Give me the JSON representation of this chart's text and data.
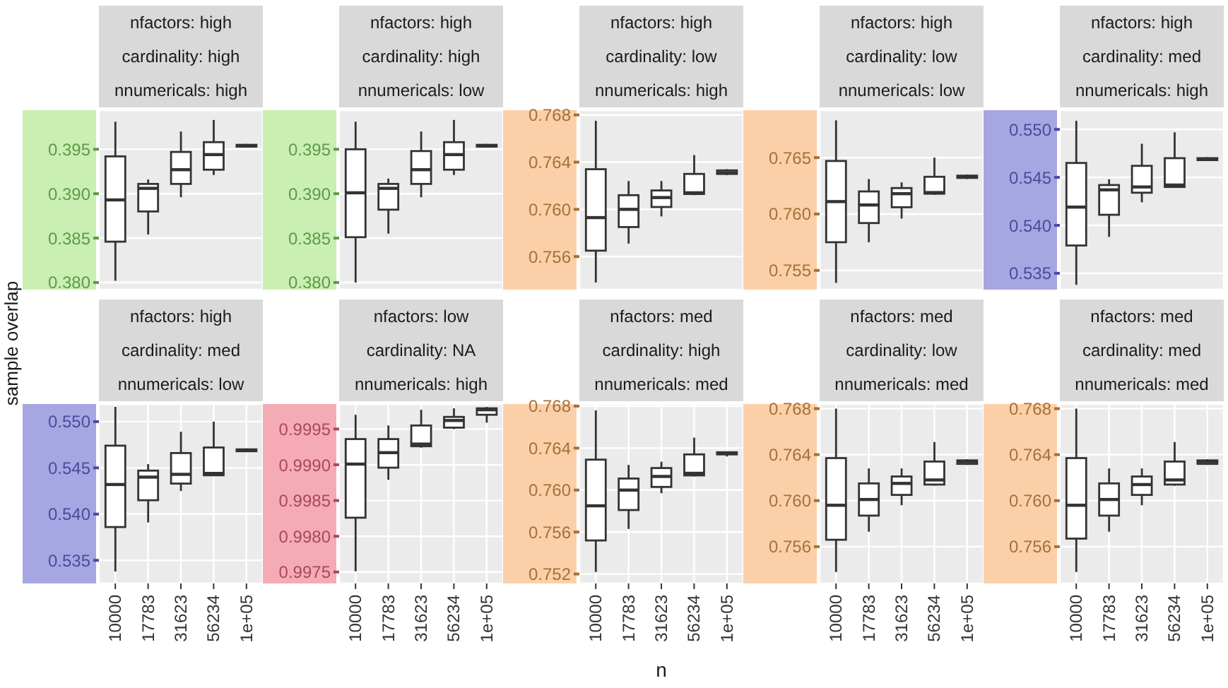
{
  "chart_data": [
    {
      "type": "box",
      "title": "nfactors: high\ncardinality: high\nnnumericals: high",
      "categories": [
        null,
        null,
        null,
        null,
        null
      ],
      "ylim": [
        0.3792,
        0.3994
      ],
      "yticks": [
        {
          "value": 0.38,
          "label": "0.380"
        },
        {
          "value": 0.385,
          "label": "0.385"
        },
        {
          "value": 0.39,
          "label": "0.390"
        },
        {
          "value": 0.395,
          "label": "0.395"
        }
      ],
      "grid": true,
      "tick_labels": "y",
      "boxes": [
        {
          "low": 0.3802,
          "q1": 0.3846,
          "median": 0.3893,
          "q3": 0.3942,
          "high": 0.3981
        },
        {
          "low": 0.3854,
          "q1": 0.388,
          "median": 0.3906,
          "q3": 0.3911,
          "high": 0.3916
        },
        {
          "low": 0.3896,
          "q1": 0.3911,
          "median": 0.3927,
          "q3": 0.3947,
          "high": 0.397
        },
        {
          "low": 0.3921,
          "q1": 0.3927,
          "median": 0.3944,
          "q3": 0.3958,
          "high": 0.3983
        },
        {
          "low": 0.3952,
          "q1": 0.3953,
          "median": 0.3954,
          "q3": 0.3955,
          "high": 0.3956
        }
      ]
    },
    {
      "type": "box",
      "title": "nfactors: high\ncardinality: high\nnnumericals: low",
      "categories": [
        null,
        null,
        null,
        null,
        null
      ],
      "ylim": [
        0.3792,
        0.3994
      ],
      "yticks": [
        {
          "value": 0.38,
          "label": "0.380"
        },
        {
          "value": 0.385,
          "label": "0.385"
        },
        {
          "value": 0.39,
          "label": "0.390"
        },
        {
          "value": 0.395,
          "label": "0.395"
        }
      ],
      "grid": true,
      "tick_labels": "y",
      "boxes": [
        {
          "low": 0.38,
          "q1": 0.3851,
          "median": 0.3901,
          "q3": 0.395,
          "high": 0.3981
        },
        {
          "low": 0.3855,
          "q1": 0.3882,
          "median": 0.3906,
          "q3": 0.3911,
          "high": 0.3917
        },
        {
          "low": 0.3896,
          "q1": 0.3911,
          "median": 0.3927,
          "q3": 0.3948,
          "high": 0.397
        },
        {
          "low": 0.3921,
          "q1": 0.3927,
          "median": 0.3944,
          "q3": 0.3958,
          "high": 0.3983
        },
        {
          "low": 0.3952,
          "q1": 0.3953,
          "median": 0.3954,
          "q3": 0.3955,
          "high": 0.3956
        }
      ]
    },
    {
      "type": "box",
      "title": "nfactors: high\ncardinality: low\nnnumericals: high",
      "categories": [
        null,
        null,
        null,
        null,
        null
      ],
      "ylim": [
        0.7532,
        0.7684
      ],
      "yticks": [
        {
          "value": 0.756,
          "label": "0.756"
        },
        {
          "value": 0.76,
          "label": "0.760"
        },
        {
          "value": 0.764,
          "label": "0.764"
        },
        {
          "value": 0.768,
          "label": "0.768"
        }
      ],
      "grid": true,
      "tick_labels": "y",
      "boxes": [
        {
          "low": 0.7538,
          "q1": 0.7565,
          "median": 0.7593,
          "q3": 0.7634,
          "high": 0.7675
        },
        {
          "low": 0.7571,
          "q1": 0.7585,
          "median": 0.76,
          "q3": 0.7612,
          "high": 0.7624
        },
        {
          "low": 0.7594,
          "q1": 0.7602,
          "median": 0.761,
          "q3": 0.7616,
          "high": 0.7624
        },
        {
          "low": 0.7612,
          "q1": 0.7613,
          "median": 0.7614,
          "q3": 0.763,
          "high": 0.7646
        },
        {
          "low": 0.7629,
          "q1": 0.763,
          "median": 0.7631,
          "q3": 0.7633,
          "high": 0.7634
        }
      ]
    },
    {
      "type": "box",
      "title": "nfactors: high\ncardinality: low\nnnumericals: low",
      "categories": [
        null,
        null,
        null,
        null,
        null
      ],
      "ylim": [
        0.7533,
        0.7692
      ],
      "yticks": [
        {
          "value": 0.755,
          "label": "0.755"
        },
        {
          "value": 0.76,
          "label": "0.760"
        },
        {
          "value": 0.765,
          "label": "0.765"
        }
      ],
      "grid": true,
      "tick_labels": "y",
      "boxes": [
        {
          "low": 0.7539,
          "q1": 0.7575,
          "median": 0.7611,
          "q3": 0.7647,
          "high": 0.7683
        },
        {
          "low": 0.7575,
          "q1": 0.7592,
          "median": 0.7608,
          "q3": 0.762,
          "high": 0.7631
        },
        {
          "low": 0.7596,
          "q1": 0.7606,
          "median": 0.7618,
          "q3": 0.7623,
          "high": 0.7628
        },
        {
          "low": 0.7617,
          "q1": 0.7618,
          "median": 0.7619,
          "q3": 0.7633,
          "high": 0.765
        },
        {
          "low": 0.7631,
          "q1": 0.7632,
          "median": 0.7633,
          "q3": 0.7634,
          "high": 0.7635
        }
      ]
    },
    {
      "type": "box",
      "title": "nfactors: high\ncardinality: med\nnnumericals: high",
      "categories": [
        null,
        null,
        null,
        null,
        null
      ],
      "ylim": [
        0.5333,
        0.552
      ],
      "yticks": [
        {
          "value": 0.535,
          "label": "0.535"
        },
        {
          "value": 0.54,
          "label": "0.540"
        },
        {
          "value": 0.545,
          "label": "0.545"
        },
        {
          "value": 0.55,
          "label": "0.550"
        }
      ],
      "grid": true,
      "tick_labels": "y",
      "boxes": [
        {
          "low": 0.5338,
          "q1": 0.5379,
          "median": 0.5419,
          "q3": 0.5465,
          "high": 0.5509
        },
        {
          "low": 0.5388,
          "q1": 0.5411,
          "median": 0.5437,
          "q3": 0.5442,
          "high": 0.5448
        },
        {
          "low": 0.5424,
          "q1": 0.5434,
          "median": 0.544,
          "q3": 0.5462,
          "high": 0.5485
        },
        {
          "low": 0.5439,
          "q1": 0.544,
          "median": 0.5442,
          "q3": 0.547,
          "high": 0.5497
        },
        {
          "low": 0.5467,
          "q1": 0.5468,
          "median": 0.5469,
          "q3": 0.547,
          "high": 0.5471
        }
      ]
    },
    {
      "type": "box",
      "title": "nfactors: high\ncardinality: med\nnnumericals: low",
      "ylabel": "sample overlap",
      "categories": [
        "10000",
        "17783",
        "31623",
        "56234",
        "1e+05"
      ],
      "ylim": [
        0.5325,
        0.5519
      ],
      "yticks": [
        {
          "value": 0.535,
          "label": "0.535"
        },
        {
          "value": 0.54,
          "label": "0.540"
        },
        {
          "value": 0.545,
          "label": "0.545"
        },
        {
          "value": 0.55,
          "label": "0.550"
        }
      ],
      "grid": true,
      "boxes": [
        {
          "low": 0.5338,
          "q1": 0.5386,
          "median": 0.5432,
          "q3": 0.5474,
          "high": 0.5516
        },
        {
          "low": 0.5391,
          "q1": 0.5415,
          "median": 0.544,
          "q3": 0.5447,
          "high": 0.5454
        },
        {
          "low": 0.5425,
          "q1": 0.5433,
          "median": 0.5443,
          "q3": 0.5466,
          "high": 0.5489
        },
        {
          "low": 0.5441,
          "q1": 0.5442,
          "median": 0.5444,
          "q3": 0.5472,
          "high": 0.55
        },
        {
          "low": 0.5467,
          "q1": 0.5468,
          "median": 0.5469,
          "q3": 0.547,
          "high": 0.5471
        }
      ]
    },
    {
      "type": "box",
      "title": "nfactors: low\ncardinality: NA\nnnumericals: high",
      "categories": [
        "10000",
        "17783",
        "31623",
        "56234",
        "1e+05"
      ],
      "ylim": [
        0.99734,
        0.99985
      ],
      "yticks": [
        {
          "value": 0.9975,
          "label": "0.9975"
        },
        {
          "value": 0.998,
          "label": "0.9980"
        },
        {
          "value": 0.9985,
          "label": "0.9985"
        },
        {
          "value": 0.999,
          "label": "0.9990"
        },
        {
          "value": 0.9995,
          "label": "0.9995"
        }
      ],
      "grid": true,
      "boxes": [
        {
          "low": 0.99751,
          "q1": 0.99826,
          "median": 0.99901,
          "q3": 0.99936,
          "high": 0.9997
        },
        {
          "low": 0.99879,
          "q1": 0.99896,
          "median": 0.99917,
          "q3": 0.99936,
          "high": 0.99955
        },
        {
          "low": 0.99924,
          "q1": 0.99926,
          "median": 0.99929,
          "q3": 0.99955,
          "high": 0.99977
        },
        {
          "low": 0.9995,
          "q1": 0.99952,
          "median": 0.99962,
          "q3": 0.99967,
          "high": 0.99979
        },
        {
          "low": 0.99959,
          "q1": 0.9997,
          "median": 0.99977,
          "q3": 0.99979,
          "high": 0.99981
        }
      ]
    },
    {
      "type": "box",
      "title": "nfactors: med\ncardinality: high\nnnumericals: med",
      "xlabel": "n",
      "categories": [
        "10000",
        "17783",
        "31623",
        "56234",
        "1e+05"
      ],
      "ylim": [
        0.7511,
        0.7682
      ],
      "yticks": [
        {
          "value": 0.752,
          "label": "0.752"
        },
        {
          "value": 0.756,
          "label": "0.756"
        },
        {
          "value": 0.76,
          "label": "0.760"
        },
        {
          "value": 0.764,
          "label": "0.764"
        },
        {
          "value": 0.768,
          "label": "0.768"
        }
      ],
      "grid": true,
      "boxes": [
        {
          "low": 0.7522,
          "q1": 0.7552,
          "median": 0.7585,
          "q3": 0.7629,
          "high": 0.7676
        },
        {
          "low": 0.7563,
          "q1": 0.7581,
          "median": 0.76,
          "q3": 0.7611,
          "high": 0.7624
        },
        {
          "low": 0.7597,
          "q1": 0.7603,
          "median": 0.7613,
          "q3": 0.7621,
          "high": 0.7627
        },
        {
          "low": 0.7613,
          "q1": 0.7614,
          "median": 0.7616,
          "q3": 0.7634,
          "high": 0.765
        },
        {
          "low": 0.7632,
          "q1": 0.7634,
          "median": 0.7635,
          "q3": 0.7636,
          "high": 0.7637
        }
      ]
    },
    {
      "type": "box",
      "title": "nfactors: med\ncardinality: low\nnnumericals: med",
      "categories": [
        "10000",
        "17783",
        "31623",
        "56234",
        "1e+05"
      ],
      "ylim": [
        0.7528,
        0.7684
      ],
      "yticks": [
        {
          "value": 0.756,
          "label": "0.756"
        },
        {
          "value": 0.76,
          "label": "0.760"
        },
        {
          "value": 0.764,
          "label": "0.764"
        },
        {
          "value": 0.768,
          "label": "0.768"
        }
      ],
      "grid": true,
      "boxes": [
        {
          "low": 0.7538,
          "q1": 0.7566,
          "median": 0.7596,
          "q3": 0.7637,
          "high": 0.768
        },
        {
          "low": 0.7573,
          "q1": 0.7587,
          "median": 0.7601,
          "q3": 0.7615,
          "high": 0.7628
        },
        {
          "low": 0.7596,
          "q1": 0.7605,
          "median": 0.7615,
          "q3": 0.7621,
          "high": 0.7628
        },
        {
          "low": 0.7613,
          "q1": 0.7614,
          "median": 0.7618,
          "q3": 0.7634,
          "high": 0.7651
        },
        {
          "low": 0.7631,
          "q1": 0.7632,
          "median": 0.7634,
          "q3": 0.7635,
          "high": 0.7636
        }
      ]
    },
    {
      "type": "box",
      "title": "nfactors: med\ncardinality: med\nnnumericals: med",
      "categories": [
        "10000",
        "17783",
        "31623",
        "56234",
        "1e+05"
      ],
      "ylim": [
        0.7528,
        0.7684
      ],
      "yticks": [
        {
          "value": 0.756,
          "label": "0.756"
        },
        {
          "value": 0.76,
          "label": "0.760"
        },
        {
          "value": 0.764,
          "label": "0.764"
        },
        {
          "value": 0.768,
          "label": "0.768"
        }
      ],
      "grid": true,
      "boxes": [
        {
          "low": 0.7538,
          "q1": 0.7567,
          "median": 0.7596,
          "q3": 0.7637,
          "high": 0.768
        },
        {
          "low": 0.7573,
          "q1": 0.7587,
          "median": 0.7601,
          "q3": 0.7615,
          "high": 0.7628
        },
        {
          "low": 0.7596,
          "q1": 0.7605,
          "median": 0.7614,
          "q3": 0.7621,
          "high": 0.7628
        },
        {
          "low": 0.7613,
          "q1": 0.7614,
          "median": 0.7618,
          "q3": 0.7634,
          "high": 0.7651
        },
        {
          "low": 0.7631,
          "q1": 0.7632,
          "median": 0.7634,
          "q3": 0.7635,
          "high": 0.7636
        }
      ]
    }
  ]
}
